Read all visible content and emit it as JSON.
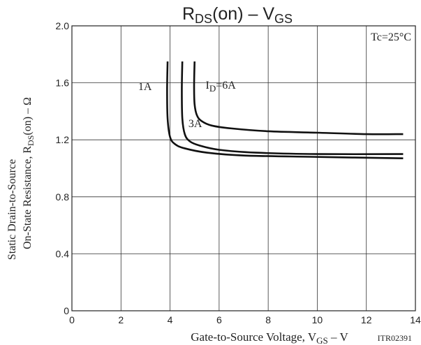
{
  "chart_data": {
    "type": "line",
    "title_main": "R",
    "title_sub": "DS",
    "title_rest": "(on)  –  V",
    "title_sub2": "GS",
    "xlabel_main": "Gate-to-Source Voltage, V",
    "xlabel_sub": "GS",
    "xlabel_rest": "  –  V",
    "ylabel_line1": "Static Drain-to-Source",
    "ylabel_line2_main": "On-State Resistance, R",
    "ylabel_line2_sub": "DS",
    "ylabel_line2_rest": "(on)  –  Ω",
    "condition": "Tc=25°C",
    "figure_id": "ITR02391",
    "xlim": [
      0,
      14
    ],
    "ylim": [
      0,
      2.0
    ],
    "x_ticks": [
      0,
      2,
      4,
      6,
      8,
      10,
      12,
      14
    ],
    "y_ticks": [
      0,
      0.4,
      0.8,
      1.2,
      1.6,
      2.0
    ],
    "x_tick_labels": [
      "0",
      "2",
      "4",
      "6",
      "8",
      "10",
      "12",
      "14"
    ],
    "y_tick_labels": [
      "0",
      "0.4",
      "0.8",
      "1.2",
      "1.6",
      "2.0"
    ],
    "grid": true,
    "series": [
      {
        "name": "1A",
        "x": [
          3.9,
          3.88,
          3.9,
          4.0,
          4.2,
          4.6,
          5.5,
          7.0,
          10.0,
          13.5
        ],
        "y": [
          1.75,
          1.55,
          1.35,
          1.22,
          1.17,
          1.14,
          1.11,
          1.09,
          1.08,
          1.07
        ]
      },
      {
        "name": "3A",
        "x": [
          4.5,
          4.48,
          4.5,
          4.6,
          4.8,
          5.2,
          6.0,
          7.5,
          10.0,
          13.5
        ],
        "y": [
          1.75,
          1.55,
          1.35,
          1.24,
          1.19,
          1.16,
          1.13,
          1.11,
          1.1,
          1.1
        ]
      },
      {
        "name": "I_D=6A",
        "label_main": "I",
        "label_sub": "D",
        "label_rest": "=6A",
        "x": [
          5.0,
          4.98,
          5.0,
          5.1,
          5.3,
          5.7,
          6.5,
          8.0,
          10.0,
          12.0,
          13.5
        ],
        "y": [
          1.75,
          1.58,
          1.45,
          1.37,
          1.33,
          1.3,
          1.28,
          1.26,
          1.25,
          1.24,
          1.24
        ]
      }
    ],
    "series_label_positions": [
      {
        "x": 2.7,
        "y": 1.55
      },
      {
        "x": 4.75,
        "y": 1.29
      },
      {
        "x": 5.45,
        "y": 1.56
      }
    ]
  }
}
